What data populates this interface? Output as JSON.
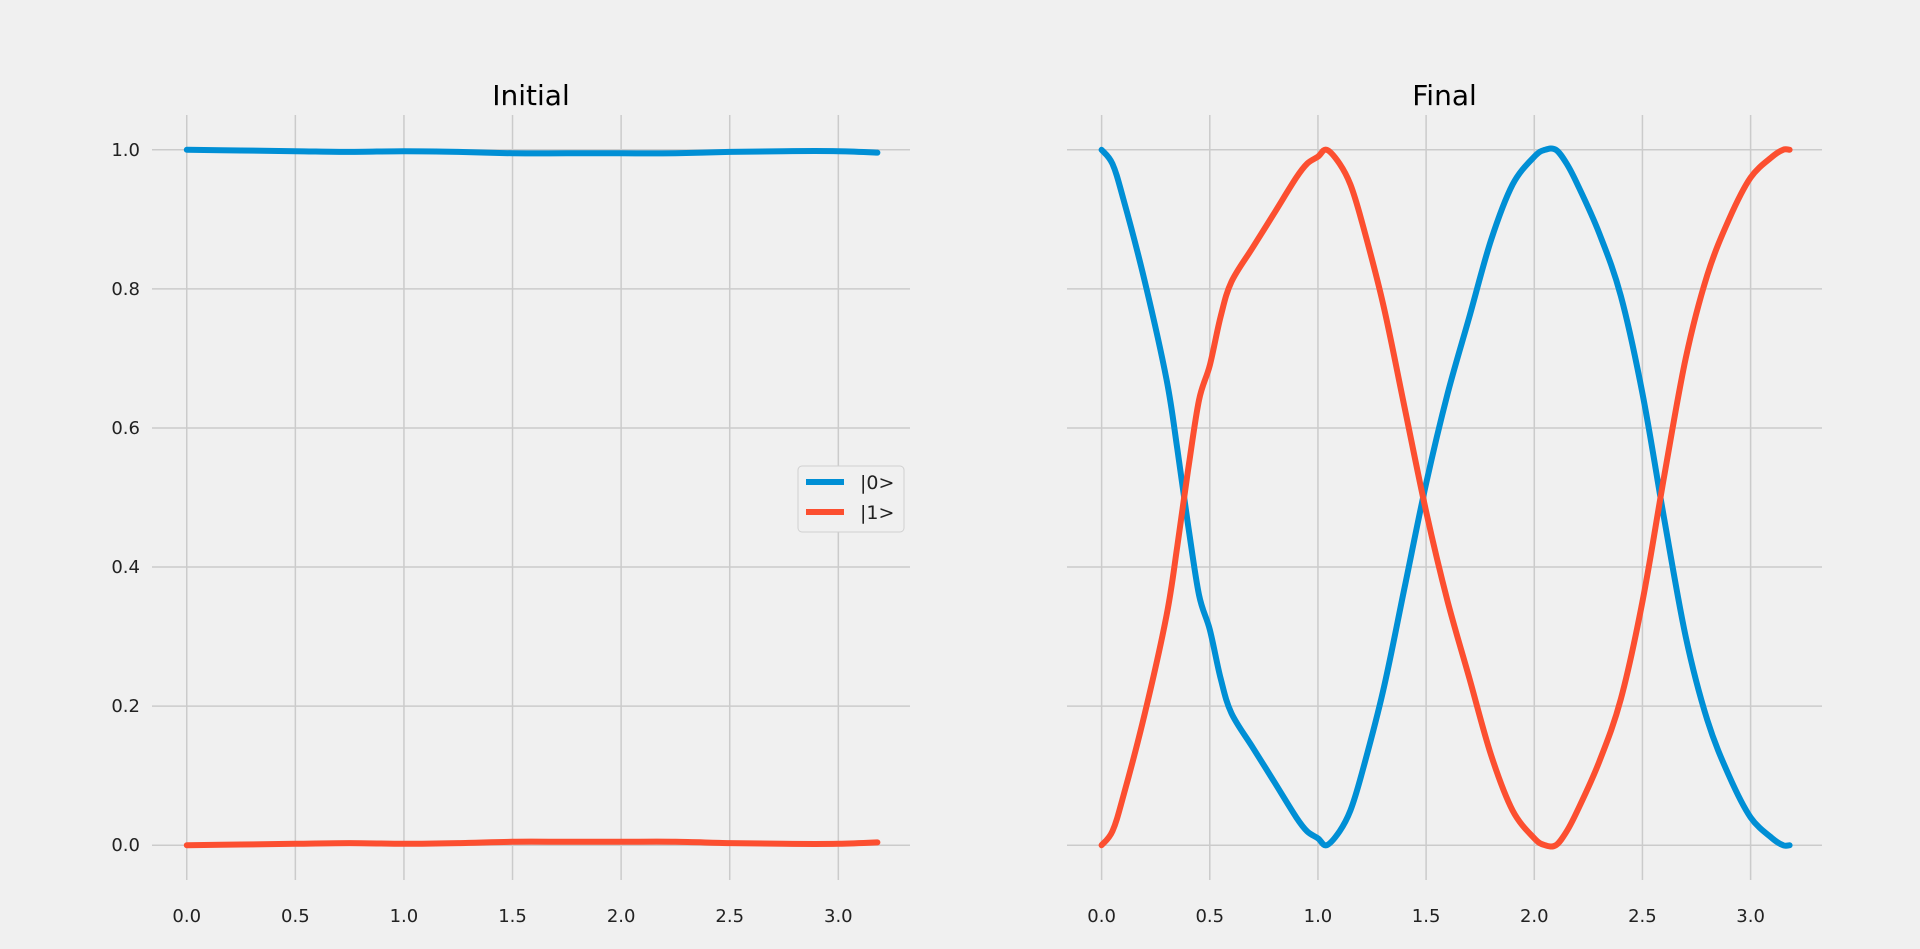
{
  "chart_data": [
    {
      "type": "line",
      "title": "Initial",
      "xlabel": "",
      "ylabel": "",
      "xlim": [
        -0.16,
        3.33
      ],
      "ylim": [
        -0.05,
        1.05
      ],
      "xticks": [
        0.0,
        0.5,
        1.0,
        1.5,
        2.0,
        2.5,
        3.0
      ],
      "xtick_labels": [
        "0.0",
        "0.5",
        "1.0",
        "1.5",
        "2.0",
        "2.5",
        "3.0"
      ],
      "yticks": [
        0.0,
        0.2,
        0.4,
        0.6,
        0.8,
        1.0
      ],
      "ytick_labels": [
        "0.0",
        "0.2",
        "0.4",
        "0.6",
        "0.8",
        "1.0"
      ],
      "grid": true,
      "legend": "center-right",
      "x": [
        0.0,
        0.25,
        0.5,
        0.75,
        1.0,
        1.25,
        1.5,
        1.75,
        2.0,
        2.25,
        2.5,
        2.75,
        3.0,
        3.18
      ],
      "series": [
        {
          "name": "|0>",
          "color": "#008fd5",
          "values": [
            1.0,
            0.999,
            0.998,
            0.997,
            0.998,
            0.997,
            0.995,
            0.995,
            0.995,
            0.995,
            0.997,
            0.998,
            0.998,
            0.996
          ]
        },
        {
          "name": "|1>",
          "color": "#fc4f30",
          "values": [
            0.0,
            0.001,
            0.002,
            0.003,
            0.002,
            0.003,
            0.005,
            0.005,
            0.005,
            0.005,
            0.003,
            0.002,
            0.002,
            0.004
          ]
        }
      ]
    },
    {
      "type": "line",
      "title": "Final",
      "xlabel": "",
      "ylabel": "",
      "xlim": [
        -0.16,
        3.33
      ],
      "ylim": [
        -0.05,
        1.05
      ],
      "xticks": [
        0.0,
        0.5,
        1.0,
        1.5,
        2.0,
        2.5,
        3.0
      ],
      "xtick_labels": [
        "0.0",
        "0.5",
        "1.0",
        "1.5",
        "2.0",
        "2.5",
        "3.0"
      ],
      "yticks": [
        0.0,
        0.2,
        0.4,
        0.6,
        0.8,
        1.0
      ],
      "ytick_labels": [],
      "grid": true,
      "legend": "none",
      "x": [
        0.0,
        0.05,
        0.1,
        0.2,
        0.3,
        0.35,
        0.4,
        0.45,
        0.5,
        0.55,
        0.6,
        0.7,
        0.8,
        0.9,
        0.95,
        1.0,
        1.04,
        1.1,
        1.15,
        1.2,
        1.3,
        1.4,
        1.5,
        1.6,
        1.7,
        1.8,
        1.9,
        2.0,
        2.05,
        2.1,
        2.15,
        2.2,
        2.3,
        2.4,
        2.5,
        2.6,
        2.7,
        2.8,
        2.9,
        3.0,
        3.1,
        3.15,
        3.18
      ],
      "series": [
        {
          "name": "|0>",
          "color": "#008fd5",
          "values": [
            1.0,
            0.98,
            0.93,
            0.81,
            0.67,
            0.57,
            0.46,
            0.36,
            0.31,
            0.24,
            0.19,
            0.14,
            0.09,
            0.04,
            0.02,
            0.01,
            0.0,
            0.02,
            0.05,
            0.1,
            0.22,
            0.37,
            0.52,
            0.65,
            0.76,
            0.87,
            0.95,
            0.99,
            1.0,
            1.0,
            0.98,
            0.95,
            0.88,
            0.79,
            0.65,
            0.47,
            0.3,
            0.18,
            0.1,
            0.04,
            0.01,
            0.0,
            0.0
          ]
        },
        {
          "name": "|1>",
          "color": "#fc4f30",
          "values": [
            0.0,
            0.02,
            0.07,
            0.19,
            0.33,
            0.43,
            0.54,
            0.64,
            0.69,
            0.76,
            0.81,
            0.86,
            0.91,
            0.96,
            0.98,
            0.99,
            1.0,
            0.98,
            0.95,
            0.9,
            0.78,
            0.63,
            0.48,
            0.35,
            0.24,
            0.13,
            0.05,
            0.01,
            0.0,
            0.0,
            0.02,
            0.05,
            0.12,
            0.21,
            0.35,
            0.53,
            0.7,
            0.82,
            0.9,
            0.96,
            0.99,
            1.0,
            1.0
          ]
        }
      ]
    }
  ]
}
